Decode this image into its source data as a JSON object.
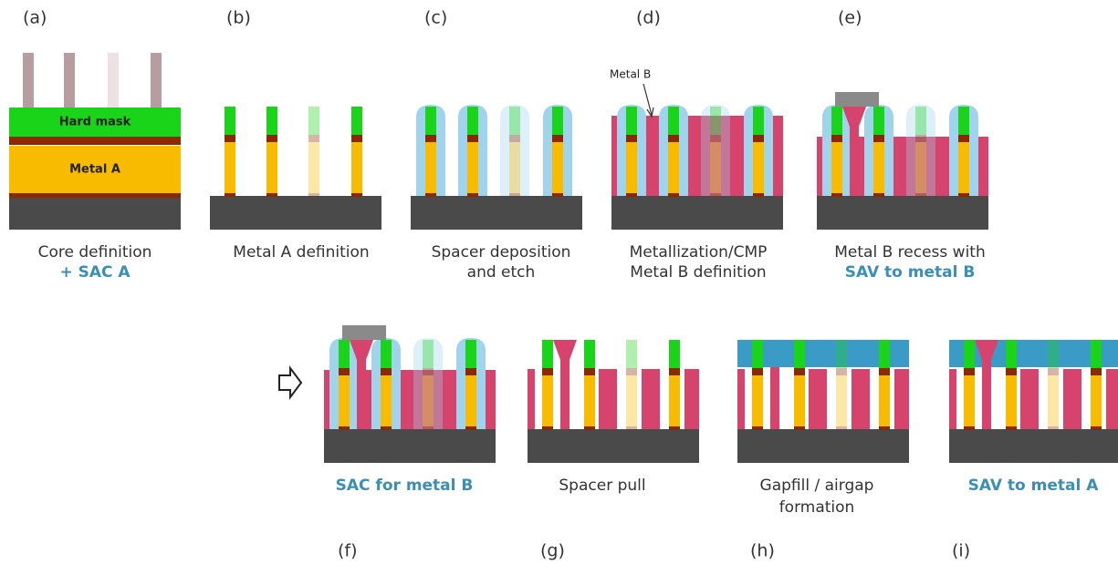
{
  "panels": [
    {
      "label": "(a)",
      "caption": [
        "Core definition",
        "+ SAC A"
      ]
    },
    {
      "label": "(b)",
      "caption": [
        "Metal A definition"
      ]
    },
    {
      "label": "(c)",
      "caption": [
        "Spacer deposition",
        "and etch"
      ]
    },
    {
      "label": "(d)",
      "caption": [
        "Metallization/CMP",
        "Metal B definition"
      ]
    },
    {
      "label": "(e)",
      "caption": [
        "Metal B recess with",
        "SAV to metal B"
      ]
    },
    {
      "label": "(f)",
      "caption": [
        "SAC for metal B"
      ]
    },
    {
      "label": "(g)",
      "caption": [
        "Spacer pull"
      ]
    },
    {
      "label": "(h)",
      "caption": [
        "Gapfill / airgap",
        "formation"
      ]
    },
    {
      "label": "(i)",
      "caption": [
        "SAV to metal A"
      ]
    }
  ],
  "layers": {
    "hard_mask": "Hard mask",
    "metal_a": "Metal A",
    "metal_b": "Metal B"
  }
}
